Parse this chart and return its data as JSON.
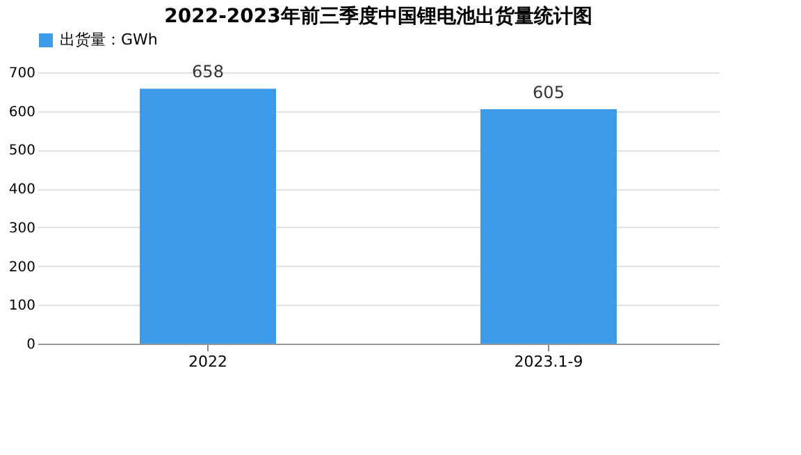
{
  "chart_data": {
    "type": "bar",
    "title": "2022-2023年前三季度中国锂电池出货量统计图",
    "categories": [
      "2022",
      "2023.1-9"
    ],
    "series": [
      {
        "name": "出货量：GWh",
        "color": "#3d9be9",
        "values": [
          658,
          605
        ]
      }
    ],
    "ylim": [
      0,
      700
    ],
    "yticks": [
      0,
      100,
      200,
      300,
      400,
      500,
      600,
      700
    ],
    "grid": "y",
    "legend": "top",
    "data_labels": true
  }
}
